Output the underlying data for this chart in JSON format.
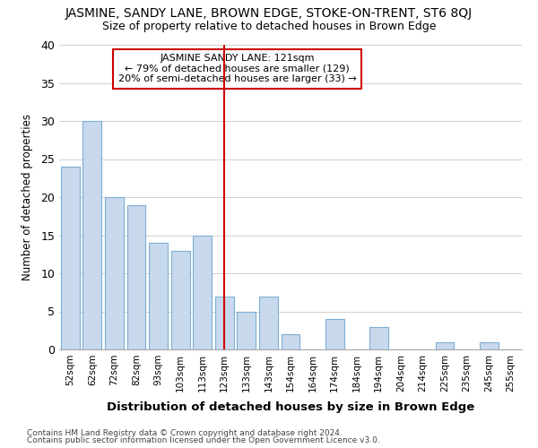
{
  "title": "JASMINE, SANDY LANE, BROWN EDGE, STOKE-ON-TRENT, ST6 8QJ",
  "subtitle": "Size of property relative to detached houses in Brown Edge",
  "xlabel": "Distribution of detached houses by size in Brown Edge",
  "ylabel": "Number of detached properties",
  "footnote1": "Contains HM Land Registry data © Crown copyright and database right 2024.",
  "footnote2": "Contains public sector information licensed under the Open Government Licence v3.0.",
  "categories": [
    "52sqm",
    "62sqm",
    "72sqm",
    "82sqm",
    "93sqm",
    "103sqm",
    "113sqm",
    "123sqm",
    "133sqm",
    "143sqm",
    "154sqm",
    "164sqm",
    "174sqm",
    "184sqm",
    "194sqm",
    "204sqm",
    "214sqm",
    "225sqm",
    "235sqm",
    "245sqm",
    "255sqm"
  ],
  "values": [
    24,
    30,
    20,
    19,
    14,
    13,
    15,
    7,
    5,
    7,
    2,
    0,
    4,
    0,
    3,
    0,
    0,
    1,
    0,
    1,
    0
  ],
  "bar_facecolor": "#c9d9ed",
  "bar_edgecolor": "#7bafd4",
  "property_line_label": "JASMINE SANDY LANE: 121sqm",
  "annotation_line1": "← 79% of detached houses are smaller (129)",
  "annotation_line2": "20% of semi-detached houses are larger (33) →",
  "annotation_box_color": "#ffffff",
  "annotation_border_color": "#cc0000",
  "vline_color": "#cc0000",
  "vline_position": 7,
  "ylim": [
    0,
    40
  ],
  "yticks": [
    0,
    5,
    10,
    15,
    20,
    25,
    30,
    35,
    40
  ],
  "background_color": "#ffffff",
  "grid_color": "#d0d0d0"
}
